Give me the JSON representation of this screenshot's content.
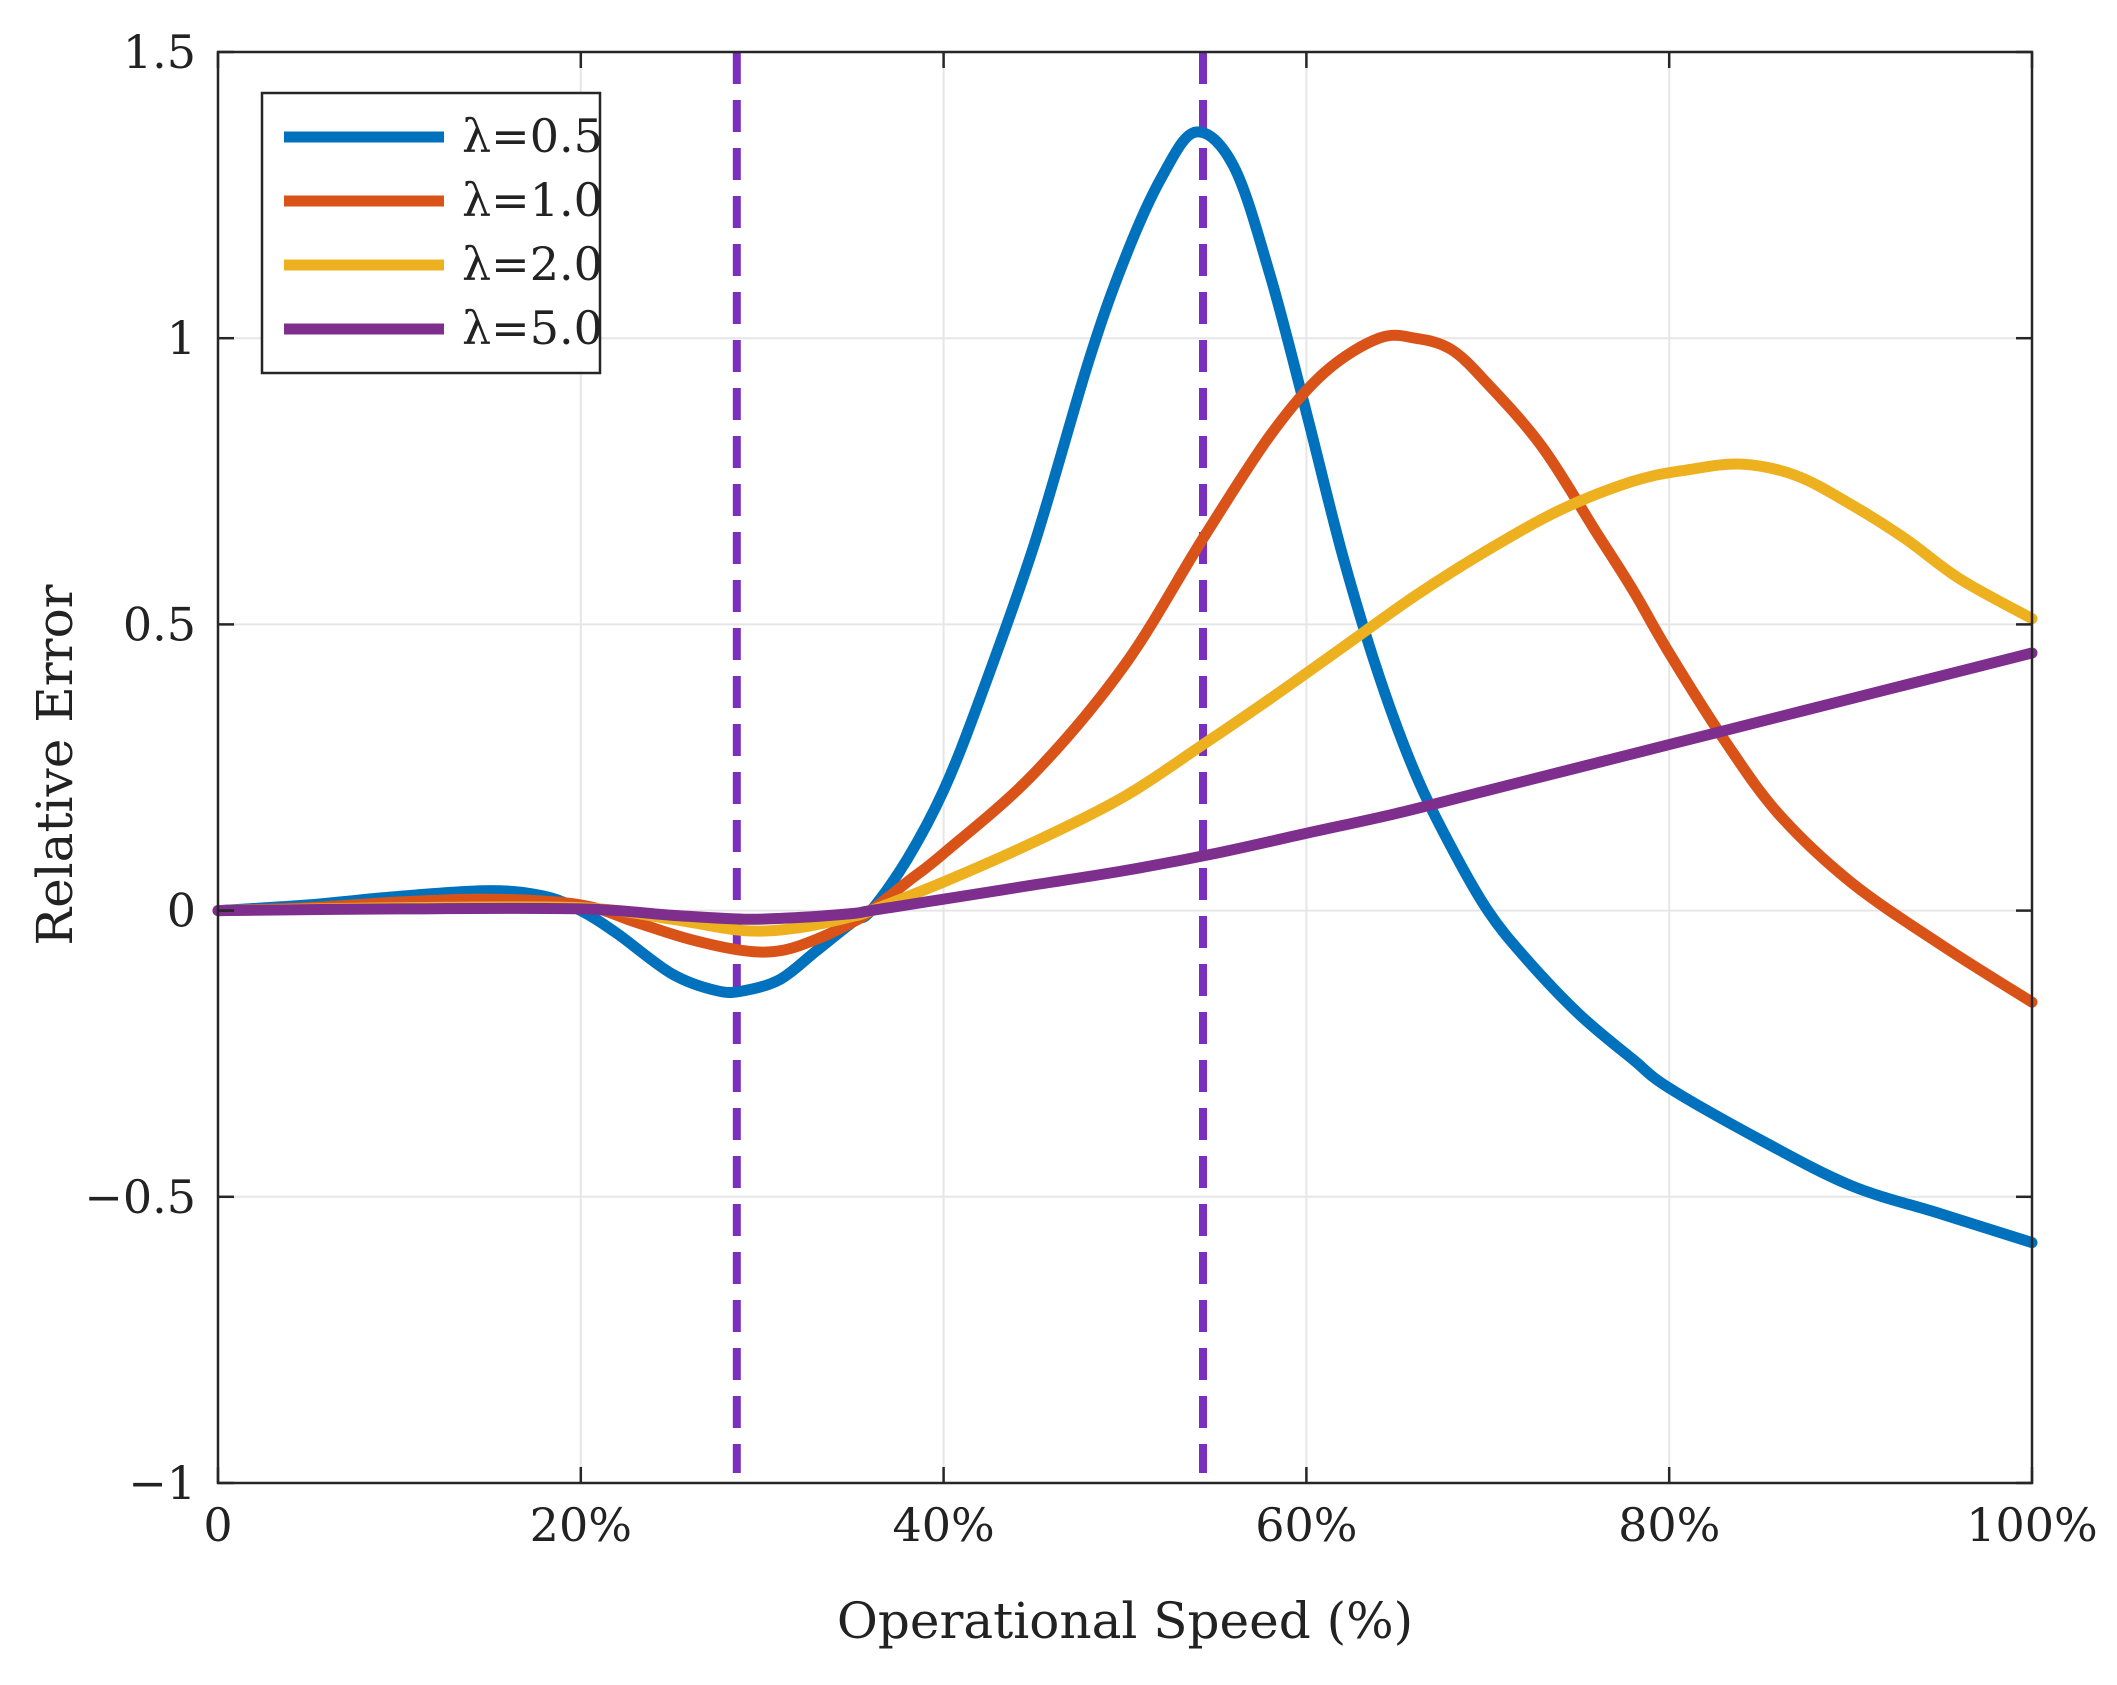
{
  "chart_data": {
    "type": "line",
    "title": "",
    "xlabel": "Operational Speed (%)",
    "ylabel": "Relative Error",
    "xlim": [
      0,
      100
    ],
    "ylim": [
      -1,
      1.5
    ],
    "x_ticks": [
      0,
      20,
      40,
      60,
      80,
      100
    ],
    "x_tick_labels": [
      "0",
      "20%",
      "40%",
      "60%",
      "80%",
      "100%"
    ],
    "y_ticks": [
      -1,
      -0.5,
      0,
      0.5,
      1,
      1.5
    ],
    "y_tick_labels": [
      "−1",
      "−0.5",
      "0",
      "0.5",
      "1",
      "1.5"
    ],
    "grid": true,
    "legend_position": "top-left",
    "vertical_reference_lines": [
      {
        "x": 28.6,
        "color": "#7B2FBE",
        "style": "dashed"
      },
      {
        "x": 54.3,
        "color": "#7B2FBE",
        "style": "dashed"
      }
    ],
    "series": [
      {
        "name": "λ=0.5",
        "color": "#0072BD",
        "x": [
          0,
          5,
          10,
          15,
          18,
          20,
          22,
          25,
          27.5,
          29,
          31,
          33,
          35,
          36,
          38,
          40,
          42,
          45,
          48,
          50,
          52,
          53.9,
          56,
          58,
          60,
          62,
          64,
          66,
          68,
          70,
          72,
          75,
          78,
          80,
          85,
          90,
          95,
          100
        ],
        "y": [
          0,
          0.01,
          0.025,
          0.035,
          0.025,
          0,
          -0.04,
          -0.11,
          -0.14,
          -0.14,
          -0.12,
          -0.07,
          -0.02,
          0.0,
          0.09,
          0.21,
          0.37,
          0.64,
          0.96,
          1.14,
          1.28,
          1.36,
          1.3,
          1.11,
          0.87,
          0.62,
          0.41,
          0.24,
          0.11,
          0.0,
          -0.08,
          -0.18,
          -0.26,
          -0.31,
          -0.4,
          -0.48,
          -0.53,
          -0.58
        ]
      },
      {
        "name": "λ=1.0",
        "color": "#D95319",
        "x": [
          0,
          5,
          10,
          15,
          20,
          23,
          26,
          29,
          31,
          33,
          35,
          36,
          38,
          40,
          45,
          50,
          54.3,
          58,
          61,
          64,
          66,
          68,
          70,
          73,
          76,
          78,
          80,
          83,
          86,
          90,
          95,
          100
        ],
        "y": [
          0,
          0.005,
          0.015,
          0.02,
          0.01,
          -0.02,
          -0.05,
          -0.07,
          -0.07,
          -0.05,
          -0.02,
          0.0,
          0.05,
          0.1,
          0.24,
          0.43,
          0.65,
          0.83,
          0.94,
          1.0,
          1.0,
          0.98,
          0.92,
          0.81,
          0.66,
          0.56,
          0.45,
          0.3,
          0.17,
          0.05,
          -0.06,
          -0.16
        ]
      },
      {
        "name": "λ=2.0",
        "color": "#EDB120",
        "x": [
          0,
          10,
          20,
          25,
          29,
          32,
          35,
          36,
          40,
          45,
          50,
          54.3,
          58,
          62,
          66,
          70,
          74,
          78,
          81,
          84,
          87,
          90,
          93,
          96,
          100
        ],
        "y": [
          0,
          0.005,
          0.005,
          -0.015,
          -0.035,
          -0.03,
          -0.01,
          0.0,
          0.05,
          0.12,
          0.2,
          0.29,
          0.37,
          0.46,
          0.55,
          0.63,
          0.7,
          0.75,
          0.77,
          0.78,
          0.76,
          0.71,
          0.65,
          0.58,
          0.51
        ]
      },
      {
        "name": "λ=5.0",
        "color": "#7E2F8E",
        "x": [
          0,
          10,
          20,
          25,
          29,
          32,
          35,
          36,
          40,
          45,
          50,
          55,
          60,
          65,
          70,
          75,
          80,
          85,
          90,
          95,
          100
        ],
        "y": [
          0,
          0.003,
          0.003,
          -0.008,
          -0.015,
          -0.012,
          -0.005,
          0.0,
          0.02,
          0.045,
          0.07,
          0.1,
          0.135,
          0.17,
          0.21,
          0.25,
          0.29,
          0.33,
          0.37,
          0.41,
          0.45
        ]
      }
    ]
  }
}
